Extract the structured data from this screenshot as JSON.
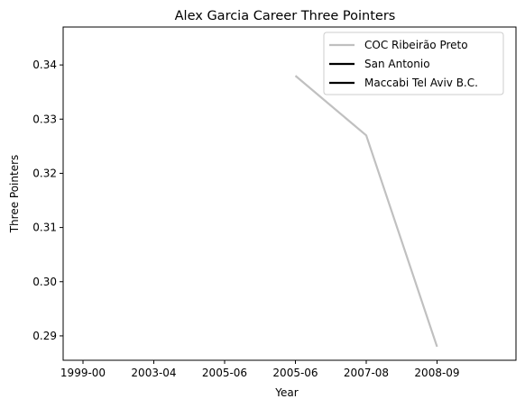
{
  "chart_data": {
    "type": "line",
    "title": "Alex Garcia  Career Three Pointers",
    "xlabel": "Year",
    "ylabel": "Three Pointers",
    "x_ticks": [
      "1999-00",
      "2003-04",
      "2005-06",
      "2005-06",
      "2007-08",
      "2008-09"
    ],
    "ylim": [
      0.2855,
      0.347
    ],
    "y_ticks": [
      "0.29",
      "0.30",
      "0.31",
      "0.32",
      "0.33",
      "0.34"
    ],
    "y_tick_values": [
      0.29,
      0.3,
      0.31,
      0.32,
      0.33,
      0.34
    ],
    "grid": false,
    "legend_position": "upper right",
    "series": [
      {
        "name": "COC Ribeirão Preto",
        "color": "#c0c0c0",
        "points": [
          {
            "x": "2005-06",
            "y": 0.338
          },
          {
            "x": "2007-08",
            "y": 0.327
          },
          {
            "x": "2008-09",
            "y": 0.288
          }
        ]
      },
      {
        "name": "San Antonio",
        "color": "#000000",
        "points": []
      },
      {
        "name": "Maccabi Tel Aviv B.C.",
        "color": "#000000",
        "points": []
      }
    ]
  }
}
